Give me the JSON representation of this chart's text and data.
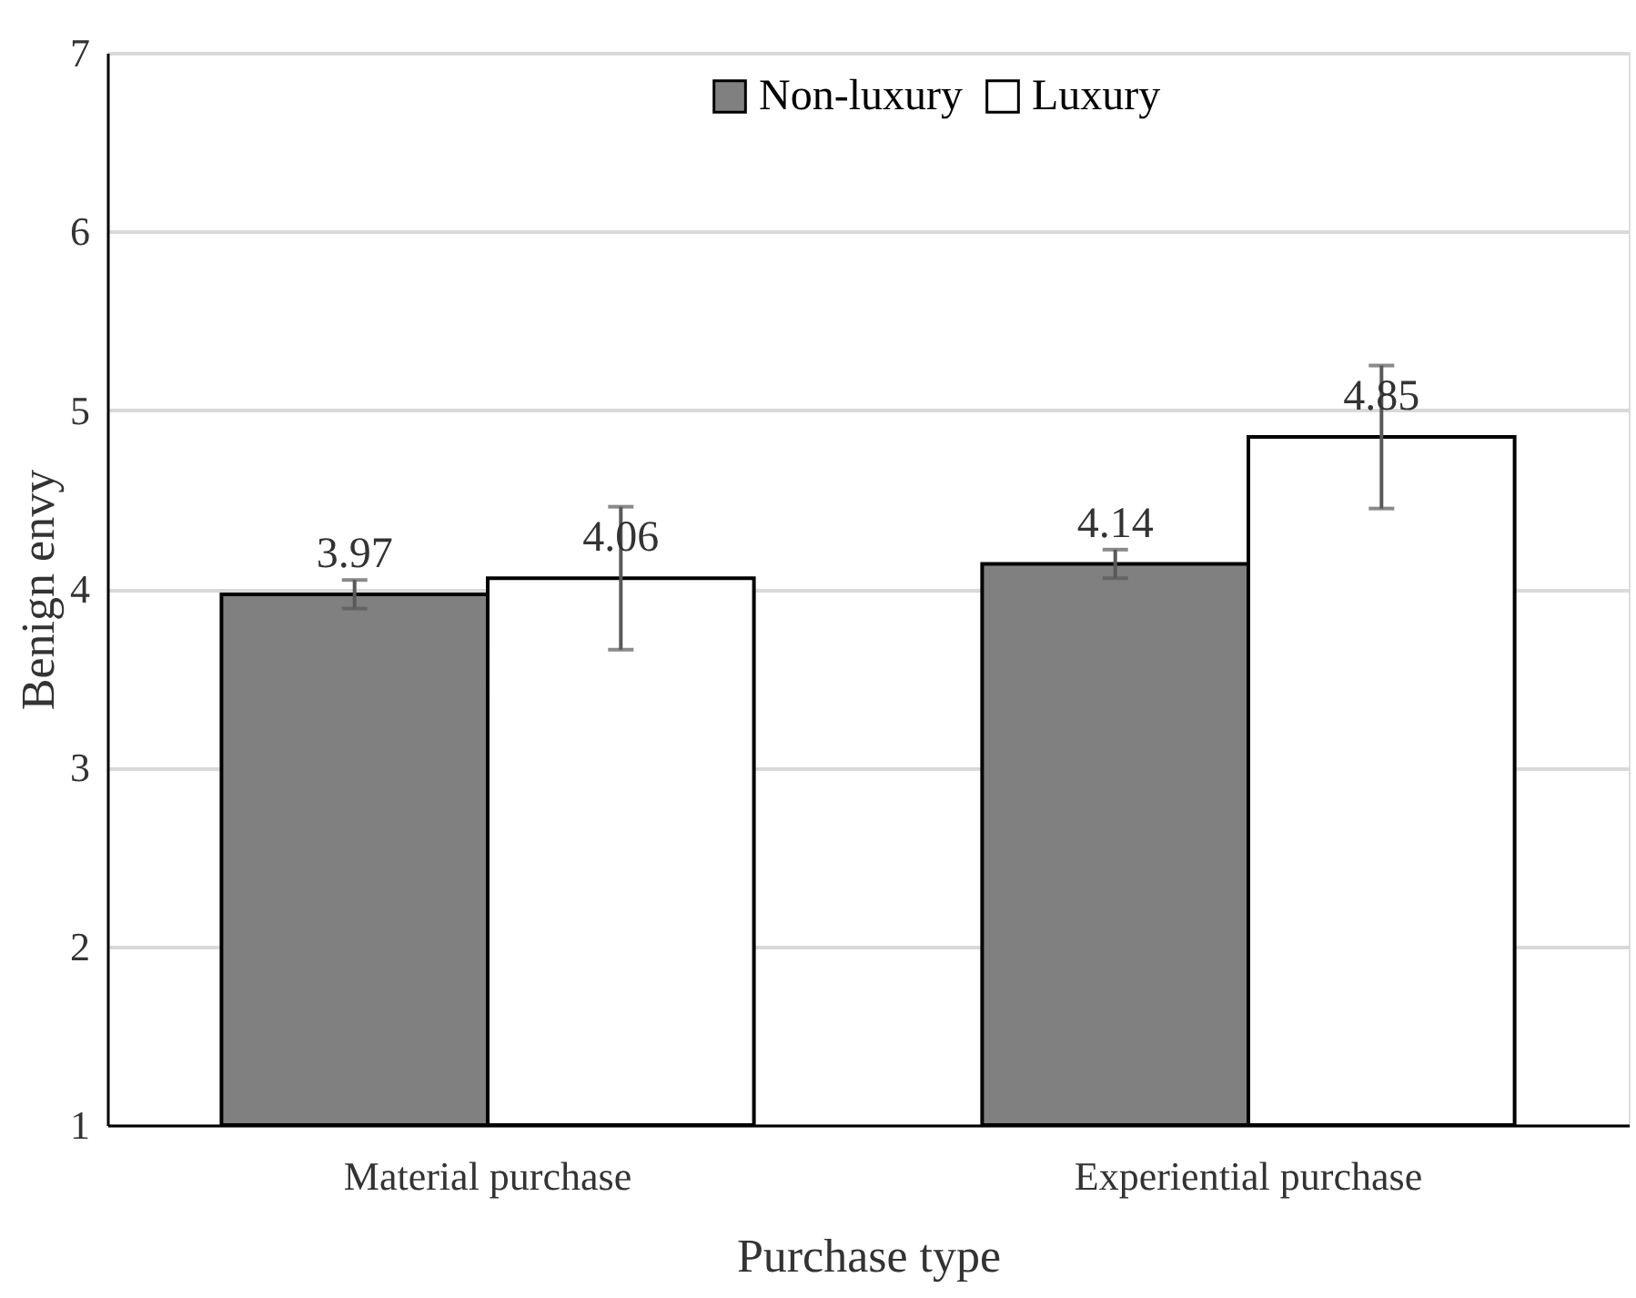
{
  "chart_data": {
    "type": "bar",
    "xlabel": "Purchase type",
    "ylabel": "Benign envy",
    "categories": [
      "Material purchase",
      "Experiential purchase"
    ],
    "series": [
      {
        "name": "Non-luxury",
        "color": "#808080",
        "values": [
          3.97,
          4.14
        ],
        "errors": [
          0.08,
          0.08
        ]
      },
      {
        "name": "Luxury",
        "color": "#ffffff",
        "values": [
          4.06,
          4.85
        ],
        "errors": [
          0.4,
          0.4
        ]
      }
    ],
    "ylim": [
      1,
      7
    ],
    "yticks": [
      1,
      2,
      3,
      4,
      5,
      6,
      7
    ],
    "grid": "y",
    "legend": "top",
    "data_labels": true
  }
}
